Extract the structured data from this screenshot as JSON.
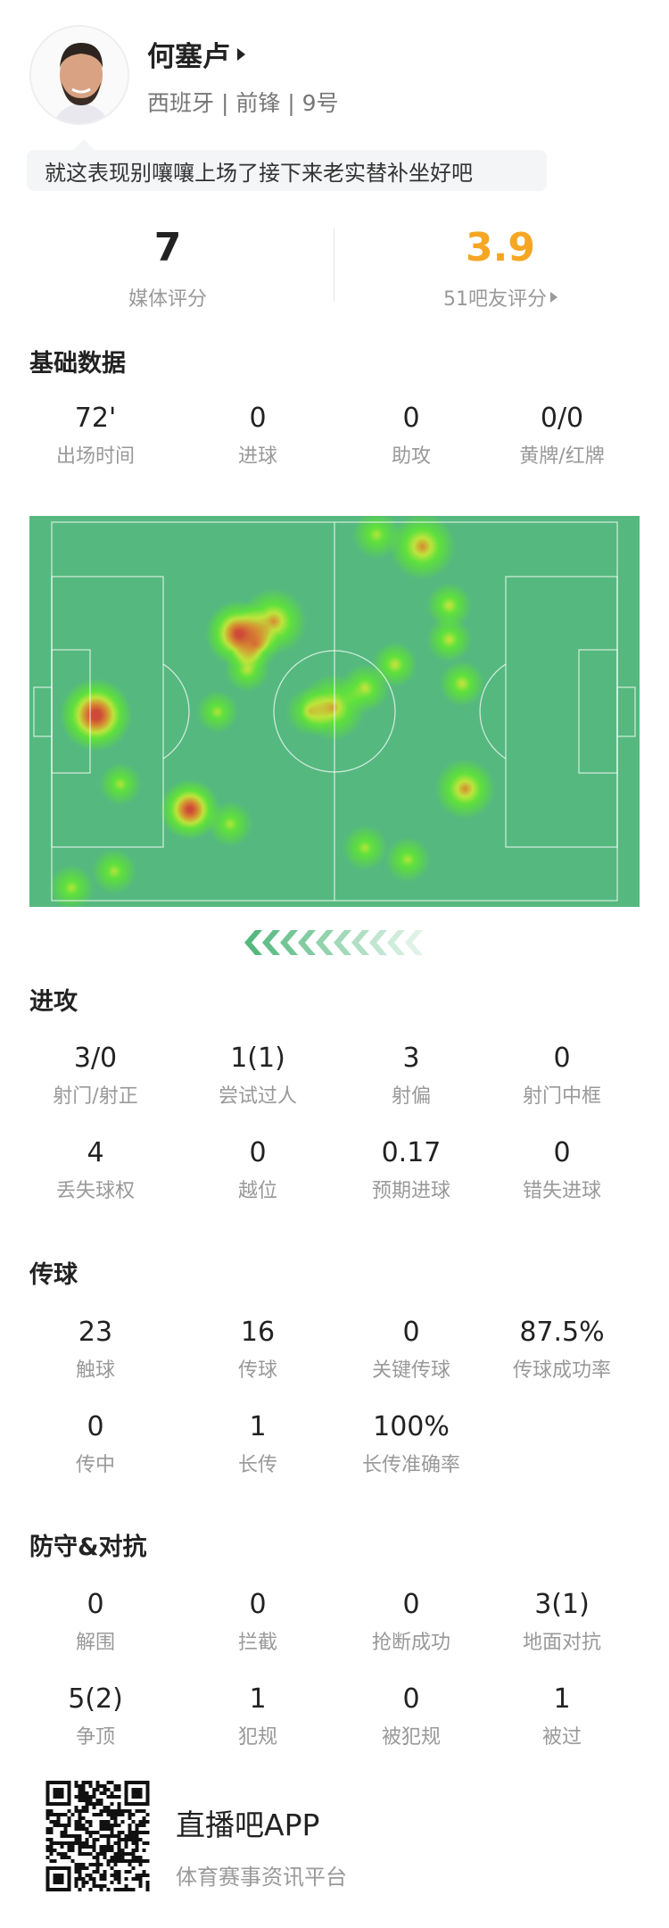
{
  "player": {
    "name": "何塞卢",
    "info": "西班牙 | 前锋 | 9号",
    "comment": "就这表现别嚷嚷上场了接下来老实替补坐好吧"
  },
  "ratings": {
    "media": {
      "value": "7",
      "label": "媒体评分"
    },
    "fans": {
      "value": "3.9",
      "label": "51吧友评分",
      "color": "#f5a623"
    }
  },
  "basic": {
    "title": "基础数据",
    "items": [
      {
        "value": "72'",
        "label": "出场时间"
      },
      {
        "value": "0",
        "label": "进球"
      },
      {
        "value": "0",
        "label": "助攻"
      },
      {
        "value": "0/0",
        "label": "黄牌/红牌"
      }
    ]
  },
  "heatmap": {
    "pitch_color": "#55b97f",
    "attack_direction": "left"
  },
  "attack": {
    "title": "进攻",
    "items": [
      {
        "value": "3/0",
        "label": "射门/射正"
      },
      {
        "value": "1(1)",
        "label": "尝试过人"
      },
      {
        "value": "3",
        "label": "射偏"
      },
      {
        "value": "0",
        "label": "射门中框"
      },
      {
        "value": "4",
        "label": "丢失球权"
      },
      {
        "value": "0",
        "label": "越位"
      },
      {
        "value": "0.17",
        "label": "预期进球"
      },
      {
        "value": "0",
        "label": "错失进球"
      }
    ]
  },
  "passing": {
    "title": "传球",
    "items": [
      {
        "value": "23",
        "label": "触球"
      },
      {
        "value": "16",
        "label": "传球"
      },
      {
        "value": "0",
        "label": "关键传球"
      },
      {
        "value": "87.5%",
        "label": "传球成功率"
      },
      {
        "value": "0",
        "label": "传中"
      },
      {
        "value": "1",
        "label": "长传"
      },
      {
        "value": "100%",
        "label": "长传准确率"
      }
    ]
  },
  "defense": {
    "title": "防守&对抗",
    "items": [
      {
        "value": "0",
        "label": "解围"
      },
      {
        "value": "0",
        "label": "拦截"
      },
      {
        "value": "0",
        "label": "抢断成功"
      },
      {
        "value": "3(1)",
        "label": "地面对抗"
      },
      {
        "value": "5(2)",
        "label": "争顶"
      },
      {
        "value": "1",
        "label": "犯规"
      },
      {
        "value": "0",
        "label": "被犯规"
      },
      {
        "value": "1",
        "label": "被过"
      }
    ]
  },
  "footer": {
    "app_name": "直播吧APP",
    "tagline": "体育赛事资讯平台",
    "qr_icon": "qr-code-icon"
  }
}
